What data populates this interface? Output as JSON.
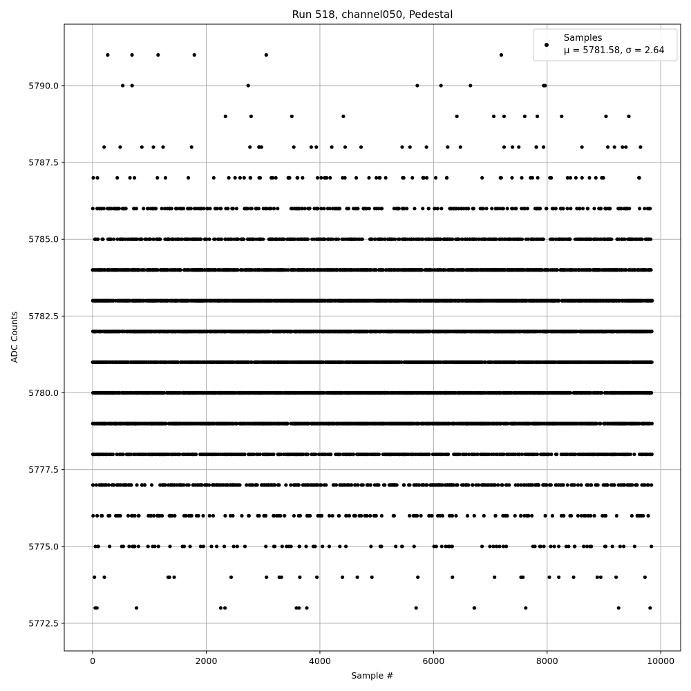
{
  "chart_data": {
    "type": "scatter",
    "title": "Run 518, channel050, Pedestal",
    "xlabel": "Sample #",
    "ylabel": "ADC Counts",
    "xlim": [
      -500,
      10350
    ],
    "ylim": [
      5771.6,
      5792.0
    ],
    "xticks": [
      0,
      2000,
      4000,
      6000,
      8000,
      10000
    ],
    "xtick_labels": [
      "0",
      "2000",
      "4000",
      "6000",
      "8000",
      "10000"
    ],
    "yticks": [
      5772.5,
      5775.0,
      5777.5,
      5780.0,
      5782.5,
      5785.0,
      5787.5,
      5790.0
    ],
    "ytick_labels": [
      "5772.5",
      "5775.0",
      "5777.5",
      "5780.0",
      "5782.5",
      "5785.0",
      "5787.5",
      "5790.0"
    ],
    "grid": true,
    "legend_position": "top-right",
    "marker_color": "#000000",
    "series": [
      {
        "name": "Samples",
        "stats_label": "μ = 5781.58, σ = 2.64",
        "x_range": [
          0,
          9850
        ],
        "n_points": 9850,
        "levels": [
          {
            "y": 5773,
            "count": 14
          },
          {
            "y": 5774,
            "count": 26
          },
          {
            "y": 5775,
            "count": 90
          },
          {
            "y": 5776,
            "count": 150
          },
          {
            "y": 5777,
            "count": 380
          },
          {
            "y": 5778,
            "count": 600
          },
          {
            "y": 5779,
            "count": 1100
          },
          {
            "y": 5780,
            "count": 1350
          },
          {
            "y": 5781,
            "count": 1500
          },
          {
            "y": 5782,
            "count": 1450
          },
          {
            "y": 5783,
            "count": 1300
          },
          {
            "y": 5784,
            "count": 1000
          },
          {
            "y": 5785,
            "count": 560
          },
          {
            "y": 5786,
            "count": 260
          },
          {
            "y": 5787,
            "count": 70
          },
          {
            "y": 5788,
            "count": 34
          },
          {
            "y": 5789,
            "count": 12
          },
          {
            "y": 5790,
            "count": 8
          },
          {
            "y": 5791,
            "count": 6
          }
        ]
      }
    ]
  }
}
